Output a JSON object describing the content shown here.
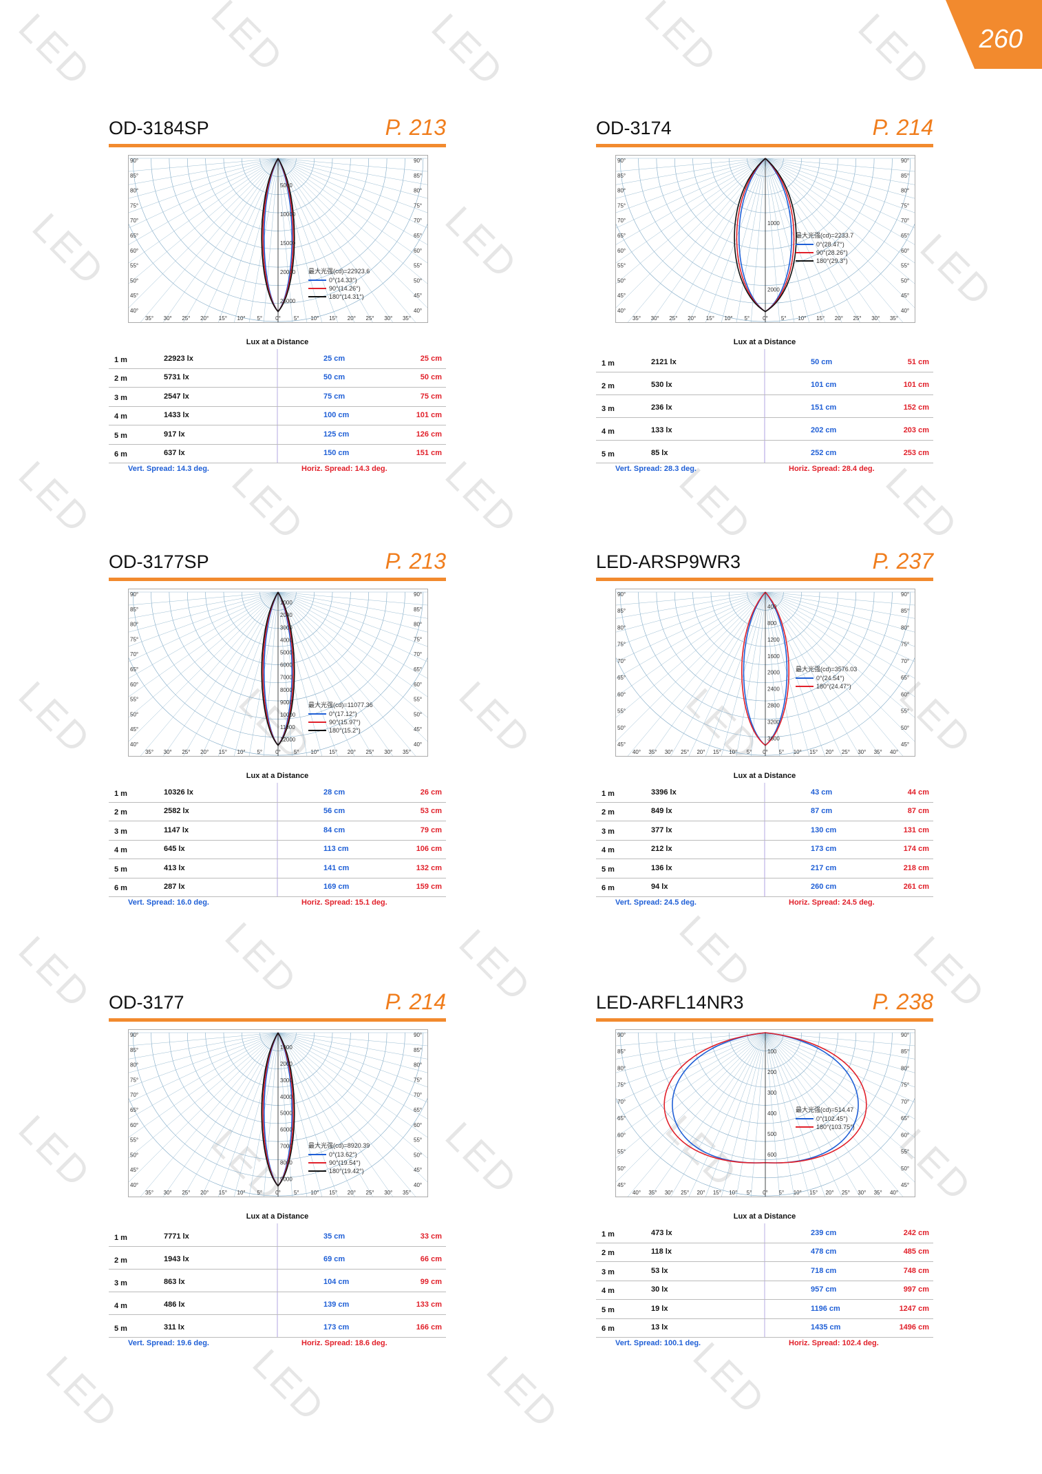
{
  "page_number": "260",
  "watermark": "LED",
  "colors": {
    "accent": "#f28a2e",
    "vert": "#1f5fd6",
    "horz": "#e1202a",
    "beam": "#c9b8f2"
  },
  "panels": [
    {
      "model": "OD-3184SP",
      "ref": "P. 213",
      "polar": {
        "angle_labels": [
          "35°",
          "30°",
          "25°",
          "20°",
          "15°",
          "10°",
          "5°",
          "0°",
          "5°",
          "10°",
          "15°",
          "20°",
          "25°",
          "30°",
          "35°"
        ],
        "side_labels": [
          "90°",
          "85°",
          "80°",
          "75°",
          "70°",
          "65°",
          "60°",
          "55°",
          "50°",
          "45°",
          "40°"
        ],
        "radial_labels": [
          "5000",
          "10000",
          "15000",
          "20000",
          "25000"
        ],
        "lobe": "narrow",
        "legend_title": "最大光强(cd)=22923.6",
        "legend": [
          {
            "label": "0°(14.33°)",
            "color": "#1f5fd6"
          },
          {
            "label": "90°(14.26°)",
            "color": "#e1202a"
          },
          {
            "label": "180°(14.31°)",
            "color": "#111111"
          }
        ]
      },
      "lux_title": "Lux at a Distance",
      "rows": [
        {
          "dist": "1 m",
          "lux": "22923 lx",
          "vert": "25 cm",
          "horz": "25 cm"
        },
        {
          "dist": "2 m",
          "lux": "5731 lx",
          "vert": "50 cm",
          "horz": "50 cm"
        },
        {
          "dist": "3 m",
          "lux": "2547 lx",
          "vert": "75 cm",
          "horz": "75 cm"
        },
        {
          "dist": "4 m",
          "lux": "1433 lx",
          "vert": "100 cm",
          "horz": "101 cm"
        },
        {
          "dist": "5 m",
          "lux": "917 lx",
          "vert": "125 cm",
          "horz": "126 cm"
        },
        {
          "dist": "6 m",
          "lux": "637 lx",
          "vert": "150 cm",
          "horz": "151 cm"
        }
      ],
      "spread_v": "Vert. Spread: 14.3 deg.",
      "spread_h": "Horiz. Spread: 14.3 deg."
    },
    {
      "model": "OD-3174",
      "ref": "P. 214",
      "polar": {
        "angle_labels": [
          "35°",
          "30°",
          "25°",
          "20°",
          "15°",
          "10°",
          "5°",
          "0°",
          "5°",
          "10°",
          "15°",
          "20°",
          "25°",
          "30°",
          "35°"
        ],
        "side_labels": [
          "90°",
          "85°",
          "80°",
          "75°",
          "70°",
          "65°",
          "60°",
          "55°",
          "50°",
          "45°",
          "40°"
        ],
        "radial_labels": [
          "1000",
          "2000"
        ],
        "lobe": "medium",
        "legend_title": "最大光强(cd)=2233.7",
        "legend": [
          {
            "label": "0°(28.47°)",
            "color": "#1f5fd6"
          },
          {
            "label": "90°(28.26°)",
            "color": "#e1202a"
          },
          {
            "label": "180°(29.3°)",
            "color": "#111111"
          }
        ]
      },
      "lux_title": "Lux at a Distance",
      "rows": [
        {
          "dist": "1 m",
          "lux": "2121 lx",
          "vert": "50 cm",
          "horz": "51 cm"
        },
        {
          "dist": "2 m",
          "lux": "530 lx",
          "vert": "101 cm",
          "horz": "101 cm"
        },
        {
          "dist": "3 m",
          "lux": "236 lx",
          "vert": "151 cm",
          "horz": "152 cm"
        },
        {
          "dist": "4 m",
          "lux": "133 lx",
          "vert": "202 cm",
          "horz": "203 cm"
        },
        {
          "dist": "5 m",
          "lux": "85 lx",
          "vert": "252 cm",
          "horz": "253 cm"
        }
      ],
      "spread_v": "Vert. Spread: 28.3 deg.",
      "spread_h": "Horiz. Spread: 28.4 deg."
    },
    {
      "model": "OD-3177SP",
      "ref": "P. 213",
      "polar": {
        "angle_labels": [
          "35°",
          "30°",
          "25°",
          "20°",
          "15°",
          "10°",
          "5°",
          "0°",
          "5°",
          "10°",
          "15°",
          "20°",
          "25°",
          "30°",
          "35°"
        ],
        "side_labels": [
          "90°",
          "85°",
          "80°",
          "75°",
          "70°",
          "65°",
          "60°",
          "55°",
          "50°",
          "45°",
          "40°"
        ],
        "radial_labels": [
          "1000",
          "2000",
          "3000",
          "4000",
          "5000",
          "6000",
          "7000",
          "8000",
          "9000",
          "10000",
          "11000",
          "12000"
        ],
        "lobe": "narrow",
        "legend_title": "最大光强(cd)=11077.36",
        "legend": [
          {
            "label": "0°(17.12°)",
            "color": "#1f5fd6"
          },
          {
            "label": "90°(15.97°)",
            "color": "#e1202a"
          },
          {
            "label": "180°(15.2°)",
            "color": "#111111"
          }
        ]
      },
      "lux_title": "Lux at a Distance",
      "rows": [
        {
          "dist": "1 m",
          "lux": "10326 lx",
          "vert": "28 cm",
          "horz": "26 cm"
        },
        {
          "dist": "2 m",
          "lux": "2582 lx",
          "vert": "56 cm",
          "horz": "53 cm"
        },
        {
          "dist": "3 m",
          "lux": "1147 lx",
          "vert": "84 cm",
          "horz": "79 cm"
        },
        {
          "dist": "4 m",
          "lux": "645 lx",
          "vert": "113 cm",
          "horz": "106 cm"
        },
        {
          "dist": "5 m",
          "lux": "413 lx",
          "vert": "141 cm",
          "horz": "132 cm"
        },
        {
          "dist": "6 m",
          "lux": "287 lx",
          "vert": "169 cm",
          "horz": "159 cm"
        }
      ],
      "spread_v": "Vert. Spread: 16.0 deg.",
      "spread_h": "Horiz. Spread: 15.1 deg."
    },
    {
      "model": "LED-ARSP9WR3",
      "ref": "P. 237",
      "polar": {
        "angle_labels": [
          "40°",
          "35°",
          "30°",
          "25°",
          "20°",
          "15°",
          "10°",
          "5°",
          "0°",
          "5°",
          "10°",
          "15°",
          "20°",
          "25°",
          "30°",
          "35°",
          "40°"
        ],
        "side_labels": [
          "90°",
          "85°",
          "80°",
          "75°",
          "70°",
          "65°",
          "60°",
          "55°",
          "50°",
          "45°"
        ],
        "radial_labels": [
          "400",
          "800",
          "1200",
          "1600",
          "2000",
          "2400",
          "2800",
          "3200",
          "3600"
        ],
        "lobe": "medium-narrow",
        "legend_title": "最大光强(cd)=3576.03",
        "legend": [
          {
            "label": "0°(24.54°)",
            "color": "#1f5fd6"
          },
          {
            "label": "180°(24.47°)",
            "color": "#e1202a"
          }
        ]
      },
      "lux_title": "Lux at a Distance",
      "rows": [
        {
          "dist": "1 m",
          "lux": "3396 lx",
          "vert": "43 cm",
          "horz": "44 cm"
        },
        {
          "dist": "2 m",
          "lux": "849 lx",
          "vert": "87 cm",
          "horz": "87 cm"
        },
        {
          "dist": "3 m",
          "lux": "377 lx",
          "vert": "130 cm",
          "horz": "131 cm"
        },
        {
          "dist": "4 m",
          "lux": "212 lx",
          "vert": "173 cm",
          "horz": "174 cm"
        },
        {
          "dist": "5 m",
          "lux": "136 lx",
          "vert": "217 cm",
          "horz": "218 cm"
        },
        {
          "dist": "6 m",
          "lux": "94 lx",
          "vert": "260 cm",
          "horz": "261 cm"
        }
      ],
      "spread_v": "Vert. Spread: 24.5 deg.",
      "spread_h": "Horiz. Spread: 24.5 deg."
    },
    {
      "model": "OD-3177",
      "ref": "P. 214",
      "polar": {
        "angle_labels": [
          "35°",
          "30°",
          "25°",
          "20°",
          "15°",
          "10°",
          "5°",
          "0°",
          "5°",
          "10°",
          "15°",
          "20°",
          "25°",
          "30°",
          "35°"
        ],
        "side_labels": [
          "90°",
          "85°",
          "80°",
          "75°",
          "70°",
          "65°",
          "60°",
          "55°",
          "50°",
          "45°",
          "40°"
        ],
        "radial_labels": [
          "1000",
          "2000",
          "3000",
          "4000",
          "5000",
          "6000",
          "7000",
          "8000",
          "9000"
        ],
        "lobe": "narrow",
        "legend_title": "最大光强(cd)=8920.39",
        "legend": [
          {
            "label": "0°(13.62°)",
            "color": "#1f5fd6"
          },
          {
            "label": "90°(19.54°)",
            "color": "#e1202a"
          },
          {
            "label": "180°(19.42°)",
            "color": "#111111"
          }
        ]
      },
      "lux_title": "Lux at a Distance",
      "rows": [
        {
          "dist": "1 m",
          "lux": "7771 lx",
          "vert": "35 cm",
          "horz": "33 cm"
        },
        {
          "dist": "2 m",
          "lux": "1943 lx",
          "vert": "69 cm",
          "horz": "66 cm"
        },
        {
          "dist": "3 m",
          "lux": "863 lx",
          "vert": "104 cm",
          "horz": "99 cm"
        },
        {
          "dist": "4 m",
          "lux": "486 lx",
          "vert": "139 cm",
          "horz": "133 cm"
        },
        {
          "dist": "5 m",
          "lux": "311 lx",
          "vert": "173 cm",
          "horz": "166 cm"
        }
      ],
      "spread_v": "Vert. Spread: 19.6 deg.",
      "spread_h": "Horiz. Spread: 18.6 deg."
    },
    {
      "model": "LED-ARFL14NR3",
      "ref": "P. 238",
      "polar": {
        "angle_labels": [
          "40°",
          "35°",
          "30°",
          "25°",
          "20°",
          "15°",
          "10°",
          "5°",
          "0°",
          "5°",
          "10°",
          "15°",
          "20°",
          "25°",
          "30°",
          "35°",
          "40°"
        ],
        "side_labels": [
          "90°",
          "85°",
          "80°",
          "75°",
          "70°",
          "65°",
          "60°",
          "55°",
          "50°",
          "45°"
        ],
        "radial_labels": [
          "100",
          "200",
          "300",
          "400",
          "500",
          "600"
        ],
        "lobe": "wide",
        "legend_title": "最大光强(cd)=514.47",
        "legend": [
          {
            "label": "0°(102.45°)",
            "color": "#1f5fd6"
          },
          {
            "label": "180°(103.75°)",
            "color": "#e1202a"
          }
        ]
      },
      "lux_title": "Lux at a Distance",
      "rows": [
        {
          "dist": "1 m",
          "lux": "473 lx",
          "vert": "239 cm",
          "horz": "242 cm"
        },
        {
          "dist": "2 m",
          "lux": "118 lx",
          "vert": "478 cm",
          "horz": "485 cm"
        },
        {
          "dist": "3 m",
          "lux": "53 lx",
          "vert": "718 cm",
          "horz": "748 cm"
        },
        {
          "dist": "4 m",
          "lux": "30 lx",
          "vert": "957 cm",
          "horz": "997 cm"
        },
        {
          "dist": "5 m",
          "lux": "19 lx",
          "vert": "1196 cm",
          "horz": "1247 cm"
        },
        {
          "dist": "6 m",
          "lux": "13 lx",
          "vert": "1435 cm",
          "horz": "1496 cm"
        }
      ],
      "spread_v": "Vert. Spread: 100.1 deg.",
      "spread_h": "Horiz. Spread: 102.4 deg."
    }
  ]
}
